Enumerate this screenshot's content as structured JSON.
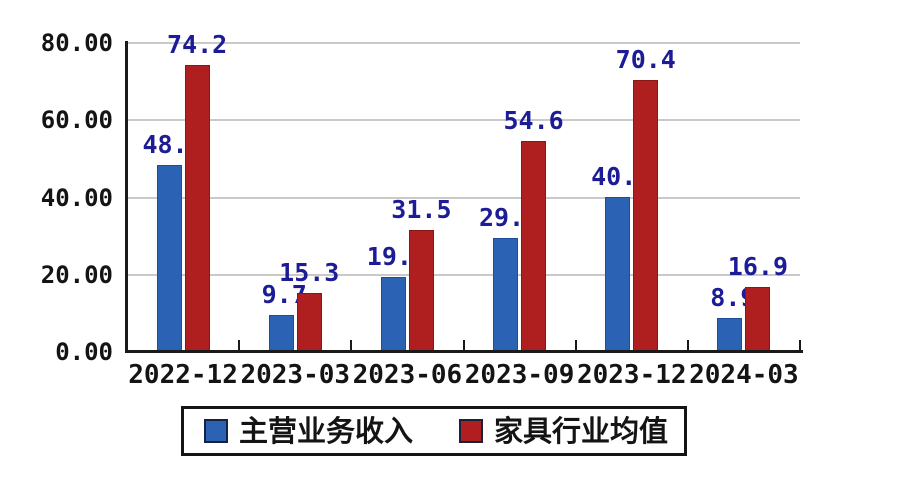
{
  "chart_data": {
    "type": "bar",
    "title": "",
    "categories": [
      "2022-12",
      "2023-03",
      "2023-06",
      "2023-09",
      "2023-12",
      "2024-03"
    ],
    "series": [
      {
        "name": "主营业务收入",
        "color": "#2b62b4",
        "border_color": "#1d4c98",
        "values": [
          48.5,
          9.7,
          19.4,
          29.5,
          40.2,
          8.9
        ],
        "value_labels_visible": [
          "48.",
          "9.7",
          "19.",
          "29.",
          "40.",
          "8.9"
        ]
      },
      {
        "name": "家具行业均值",
        "color": "#b01f1f",
        "border_color": "#8c1616",
        "values": [
          74.2,
          15.3,
          31.5,
          54.6,
          70.4,
          16.9
        ],
        "value_labels_visible": [
          "74.2",
          "15.3",
          "31.5",
          "54.6",
          "70.4",
          "16.9"
        ]
      }
    ],
    "xlabel": "",
    "ylabel": "",
    "ylim": [
      0,
      80
    ],
    "yticks": [
      {
        "value": 80,
        "label": "80.00"
      },
      {
        "value": 60,
        "label": "60.00"
      },
      {
        "value": 40,
        "label": "40.00"
      },
      {
        "value": 20,
        "label": "20.00"
      },
      {
        "value": 0,
        "label": "0.00"
      }
    ],
    "grid": true,
    "legend_position": "bottom",
    "value_label_color": "#1c1c96",
    "axis_color": "#1a1a1a",
    "grid_color": "#c9c9c9",
    "background": "#ffffff"
  },
  "legend": {
    "items": [
      {
        "label": "主营业务收入",
        "color": "#2b62b4"
      },
      {
        "label": "家具行业均值",
        "color": "#b01f1f"
      }
    ]
  }
}
